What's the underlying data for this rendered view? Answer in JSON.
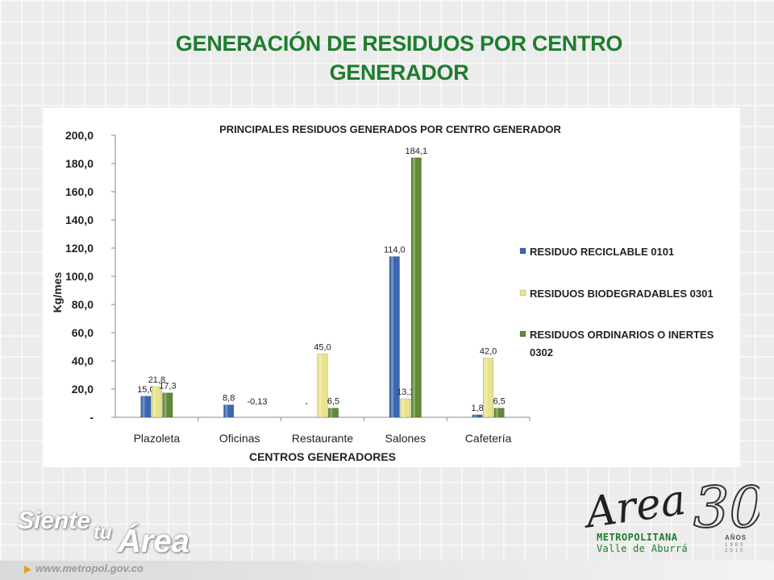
{
  "slide": {
    "title": "GENERACIÓN DE RESIDUOS POR CENTRO GENERADOR",
    "website": "www.metropol.gov.co",
    "slogan": {
      "siente": "Siente",
      "tu": "tu",
      "area": "Área"
    },
    "logo": {
      "script": "Area",
      "number": "30",
      "line1": "METROPOLITANA",
      "line2": "Valle de Aburrá",
      "anos": "AÑOS",
      "years": "1980 2010"
    },
    "colors": {
      "title": "#1e7d2e",
      "accent": "#e1a11a"
    }
  },
  "chart_data": {
    "type": "bar",
    "title": "PRINCIPALES RESIDUOS GENERADOS POR CENTRO GENERADOR",
    "xlabel": "CENTROS GENERADORES",
    "ylabel": "Kg/mes",
    "categories": [
      "Plazoleta",
      "Oficinas",
      "Restaurante",
      "Salones",
      "Cafetería"
    ],
    "ylim": [
      0,
      200
    ],
    "yticks": [
      0,
      20,
      40,
      60,
      80,
      100,
      120,
      140,
      160,
      180,
      200
    ],
    "ytick_labels": [
      "-",
      "20,0",
      "40,0",
      "60,0",
      "80,0",
      "100,0",
      "120,0",
      "140,0",
      "160,0",
      "180,0",
      "200,0"
    ],
    "grid": false,
    "legend_position": "right",
    "series": [
      {
        "name": "RESIDUO RECICLABLE  0101",
        "color": "#3a67ad",
        "values": [
          15.0,
          8.8,
          0,
          114.0,
          1.8
        ],
        "labels": [
          "15,0",
          "8,8",
          "-",
          "114,0",
          "1,8"
        ]
      },
      {
        "name": "RESIDUOS BIODEGRADABLES 0301",
        "color": "#e8e38c",
        "values": [
          21.8,
          0,
          45.0,
          13.1,
          42.0
        ],
        "labels": [
          "21,8",
          "",
          "45,0",
          "13,1",
          "42,0"
        ]
      },
      {
        "name": "RESIDUOS ORDINARIOS O INERTES 0302",
        "color": "#5e8a36",
        "values": [
          17.3,
          -0.13,
          6.5,
          184.1,
          6.5
        ],
        "labels": [
          "17,3",
          "-0,13",
          "6,5",
          "184,1",
          "6,5"
        ]
      }
    ]
  }
}
